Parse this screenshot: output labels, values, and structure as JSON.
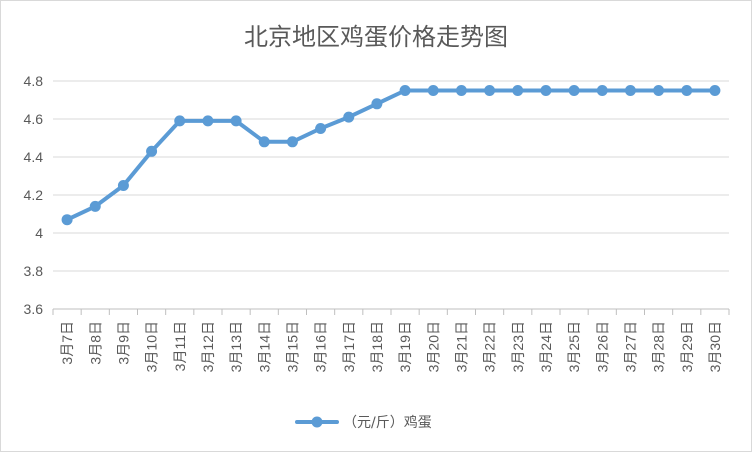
{
  "chart_data": {
    "type": "line",
    "title": "北京地区鸡蛋价格走势图",
    "xlabel": "",
    "ylabel": "",
    "categories": [
      "3月7日",
      "3月8日",
      "3月9日",
      "3月10日",
      "3月11日",
      "3月12日",
      "3月13日",
      "3月14日",
      "3月15日",
      "3月16日",
      "3月17日",
      "3月18日",
      "3月19日",
      "3月20日",
      "3月21日",
      "3月22日",
      "3月23日",
      "3月24日",
      "3月25日",
      "3月26日",
      "3月27日",
      "3月28日",
      "3月29日",
      "3月30日"
    ],
    "ylim": [
      3.6,
      4.8
    ],
    "yticks": [
      "3.6",
      "3.8",
      "4",
      "4.2",
      "4.4",
      "4.6",
      "4.8"
    ],
    "grid": true,
    "legend_position": "bottom",
    "series": [
      {
        "name": "（元/斤）鸡蛋",
        "color": "#5b9bd5",
        "values": [
          4.07,
          4.14,
          4.25,
          4.43,
          4.59,
          4.59,
          4.59,
          4.48,
          4.48,
          4.55,
          4.61,
          4.68,
          4.75,
          4.75,
          4.75,
          4.75,
          4.75,
          4.75,
          4.75,
          4.75,
          4.75,
          4.75,
          4.75,
          4.75
        ]
      }
    ]
  }
}
